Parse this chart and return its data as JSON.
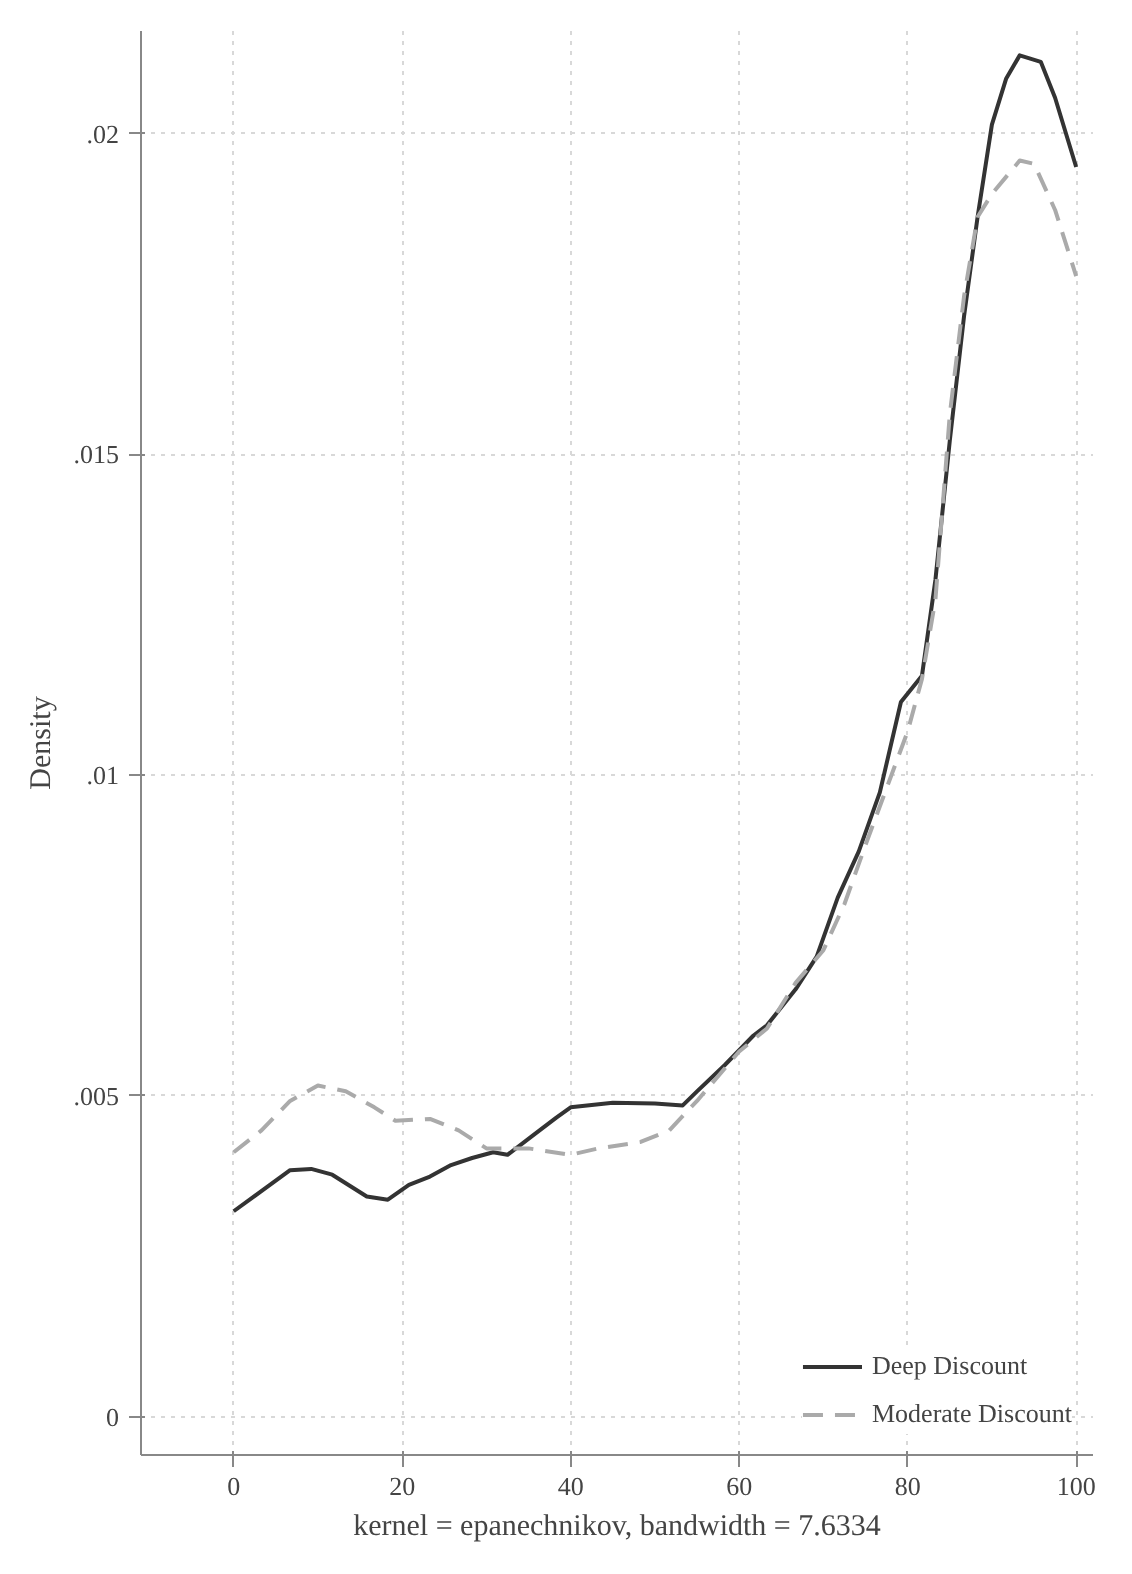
{
  "chart_data": {
    "type": "line",
    "xlabel": "kernel = epanechnikov, bandwidth = 7.6334",
    "ylabel": "Density",
    "xlim": [
      -11,
      102
    ],
    "ylim": [
      -0.0006,
      0.0216
    ],
    "xticks": [
      0,
      20,
      40,
      60,
      80,
      100
    ],
    "yticks": [
      0,
      {
        "value": 0.005,
        "label": ".005"
      },
      {
        "value": 0.01,
        "label": ".01"
      },
      {
        "value": 0.015,
        "label": ".015"
      },
      {
        "value": 0.02,
        "label": ".02"
      }
    ],
    "grid": true,
    "legend": "bottom right",
    "marker": "none",
    "series": [
      {
        "name": "Deep Discount",
        "color": "#333333",
        "line_style": "solid",
        "x": [
          0,
          6.7,
          9.2,
          11.7,
          15.8,
          18.3,
          20.8,
          23.3,
          25.8,
          28.3,
          30.8,
          32.5,
          35.8,
          38.3,
          40,
          45,
          50,
          53.3,
          55,
          58.3,
          61.7,
          63.3,
          66.7,
          69.2,
          71.7,
          74.2,
          76.7,
          79.2,
          81.7,
          83.3,
          85,
          86.7,
          88.3,
          90,
          91.7,
          93.3,
          95.8,
          97.5,
          100
        ],
        "values": [
          0.0032,
          0.00384,
          0.00386,
          0.00377,
          0.00343,
          0.00338,
          0.00361,
          0.00374,
          0.00392,
          0.00403,
          0.00412,
          0.00408,
          0.00441,
          0.00466,
          0.00482,
          0.00489,
          0.00488,
          0.00485,
          0.00507,
          0.00548,
          0.00594,
          0.0061,
          0.00666,
          0.00717,
          0.00809,
          0.00881,
          0.00973,
          0.01114,
          0.01155,
          0.01305,
          0.01521,
          0.01716,
          0.0187,
          0.02014,
          0.02086,
          0.02122,
          0.02112,
          0.02056,
          0.01948
        ]
      },
      {
        "name": "Moderate Discount",
        "color": "#aaaaaa",
        "line_style": "dashed",
        "x": [
          0,
          3.3,
          6.7,
          10,
          13.3,
          16.7,
          19.2,
          23.3,
          26.7,
          30,
          35,
          40,
          43.3,
          48.3,
          51.7,
          55,
          60,
          63.3,
          66.7,
          70,
          72.5,
          75,
          80,
          81.7,
          83.3,
          85,
          86.7,
          88.3,
          90,
          93.3,
          95,
          97.5,
          100
        ],
        "values": [
          0.00412,
          0.00446,
          0.00492,
          0.00516,
          0.00507,
          0.00482,
          0.00461,
          0.00464,
          0.00446,
          0.00418,
          0.00418,
          0.00408,
          0.00418,
          0.00428,
          0.00446,
          0.00492,
          0.00569,
          0.00605,
          0.00676,
          0.00727,
          0.00799,
          0.00891,
          0.01068,
          0.0115,
          0.01274,
          0.01562,
          0.01747,
          0.0187,
          0.01906,
          0.01958,
          0.01953,
          0.01881,
          0.01778
        ]
      }
    ]
  }
}
